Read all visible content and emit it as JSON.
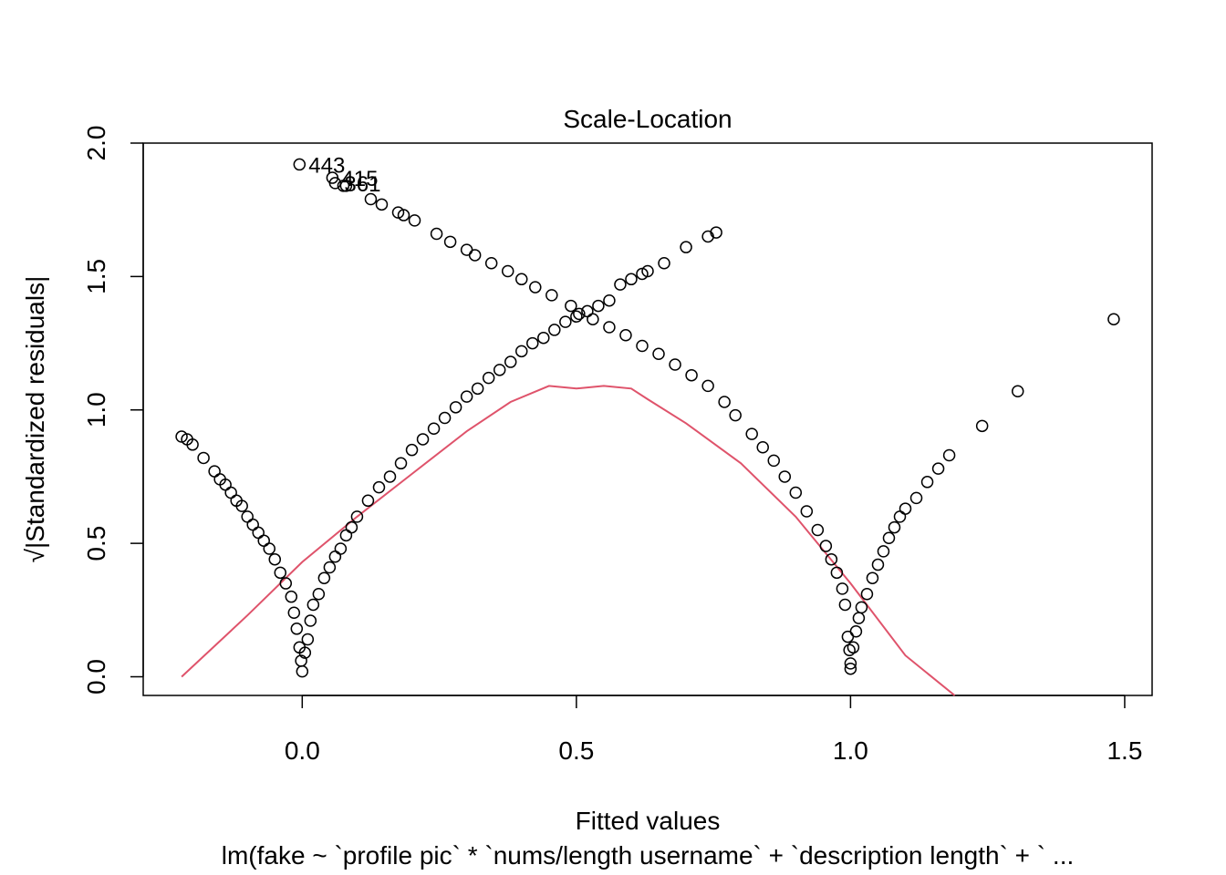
{
  "chart_data": {
    "type": "scatter",
    "title": "Scale-Location",
    "xlabel": "Fitted values",
    "ylabel": "√|Standardized residuals|",
    "subtitle": "lm(fake ~ `profile pic` * `nums/length username` + `description length` + ` ...",
    "xlim": [
      -0.29,
      1.55
    ],
    "ylim": [
      -0.07,
      2.0
    ],
    "x_ticks": [
      0.0,
      0.5,
      1.0,
      1.5
    ],
    "x_tick_labels": [
      "0.0",
      "0.5",
      "1.0",
      "1.5"
    ],
    "y_ticks": [
      0.0,
      0.5,
      1.0,
      1.5,
      2.0
    ],
    "y_tick_labels": [
      "0.0",
      "0.5",
      "1.0",
      "1.5",
      "2.0"
    ],
    "grid": false,
    "series": [
      {
        "type": "points",
        "color": "#000000",
        "points": [
          [
            -0.22,
            0.9
          ],
          [
            -0.21,
            0.89
          ],
          [
            -0.2,
            0.87
          ],
          [
            -0.18,
            0.82
          ],
          [
            -0.16,
            0.77
          ],
          [
            -0.15,
            0.74
          ],
          [
            -0.14,
            0.72
          ],
          [
            -0.13,
            0.69
          ],
          [
            -0.12,
            0.66
          ],
          [
            -0.11,
            0.64
          ],
          [
            -0.1,
            0.6
          ],
          [
            -0.09,
            0.57
          ],
          [
            -0.08,
            0.54
          ],
          [
            -0.07,
            0.51
          ],
          [
            -0.06,
            0.48
          ],
          [
            -0.05,
            0.44
          ],
          [
            -0.04,
            0.39
          ],
          [
            -0.03,
            0.35
          ],
          [
            -0.02,
            0.3
          ],
          [
            -0.015,
            0.24
          ],
          [
            -0.01,
            0.18
          ],
          [
            -0.005,
            0.11
          ],
          [
            -0.002,
            0.06
          ],
          [
            0.0,
            0.02
          ],
          [
            0.005,
            0.09
          ],
          [
            0.01,
            0.14
          ],
          [
            0.015,
            0.21
          ],
          [
            0.02,
            0.27
          ],
          [
            0.03,
            0.31
          ],
          [
            0.04,
            0.37
          ],
          [
            0.05,
            0.41
          ],
          [
            0.06,
            0.45
          ],
          [
            0.07,
            0.48
          ],
          [
            0.08,
            0.53
          ],
          [
            0.09,
            0.56
          ],
          [
            0.1,
            0.6
          ],
          [
            0.12,
            0.66
          ],
          [
            0.14,
            0.71
          ],
          [
            0.16,
            0.75
          ],
          [
            0.18,
            0.8
          ],
          [
            0.2,
            0.85
          ],
          [
            0.22,
            0.89
          ],
          [
            0.24,
            0.93
          ],
          [
            0.26,
            0.97
          ],
          [
            0.28,
            1.01
          ],
          [
            0.3,
            1.05
          ],
          [
            0.32,
            1.08
          ],
          [
            0.34,
            1.12
          ],
          [
            0.36,
            1.15
          ],
          [
            0.38,
            1.18
          ],
          [
            0.4,
            1.22
          ],
          [
            0.42,
            1.25
          ],
          [
            0.44,
            1.27
          ],
          [
            0.46,
            1.3
          ],
          [
            0.48,
            1.33
          ],
          [
            0.5,
            1.35
          ],
          [
            0.52,
            1.37
          ],
          [
            0.54,
            1.39
          ],
          [
            0.56,
            1.41
          ],
          [
            0.58,
            1.47
          ],
          [
            0.6,
            1.49
          ],
          [
            0.62,
            1.51
          ],
          [
            0.63,
            1.52
          ],
          [
            0.66,
            1.55
          ],
          [
            0.7,
            1.61
          ],
          [
            0.74,
            1.65
          ],
          [
            0.755,
            1.665
          ],
          [
            -0.005,
            1.92
          ],
          [
            0.055,
            1.87
          ],
          [
            0.06,
            1.85
          ],
          [
            0.075,
            1.84
          ],
          [
            0.08,
            1.84
          ],
          [
            0.125,
            1.79
          ],
          [
            0.145,
            1.77
          ],
          [
            0.175,
            1.74
          ],
          [
            0.185,
            1.73
          ],
          [
            0.205,
            1.71
          ],
          [
            0.245,
            1.66
          ],
          [
            0.27,
            1.63
          ],
          [
            0.3,
            1.6
          ],
          [
            0.315,
            1.58
          ],
          [
            0.345,
            1.55
          ],
          [
            0.375,
            1.52
          ],
          [
            0.4,
            1.49
          ],
          [
            0.425,
            1.46
          ],
          [
            0.455,
            1.43
          ],
          [
            0.49,
            1.39
          ],
          [
            0.505,
            1.36
          ],
          [
            0.53,
            1.34
          ],
          [
            0.56,
            1.31
          ],
          [
            0.59,
            1.28
          ],
          [
            0.62,
            1.24
          ],
          [
            0.65,
            1.21
          ],
          [
            0.68,
            1.17
          ],
          [
            0.71,
            1.13
          ],
          [
            0.74,
            1.09
          ],
          [
            0.77,
            1.03
          ],
          [
            0.79,
            0.98
          ],
          [
            0.82,
            0.91
          ],
          [
            0.84,
            0.86
          ],
          [
            0.86,
            0.81
          ],
          [
            0.88,
            0.75
          ],
          [
            0.9,
            0.69
          ],
          [
            0.92,
            0.62
          ],
          [
            0.94,
            0.55
          ],
          [
            0.955,
            0.49
          ],
          [
            0.965,
            0.44
          ],
          [
            0.975,
            0.39
          ],
          [
            0.985,
            0.33
          ],
          [
            0.99,
            0.27
          ],
          [
            0.995,
            0.15
          ],
          [
            0.998,
            0.1
          ],
          [
            1.0,
            0.05
          ],
          [
            1.0,
            0.03
          ],
          [
            1.005,
            0.11
          ],
          [
            1.01,
            0.17
          ],
          [
            1.015,
            0.22
          ],
          [
            1.02,
            0.26
          ],
          [
            1.03,
            0.31
          ],
          [
            1.04,
            0.37
          ],
          [
            1.05,
            0.42
          ],
          [
            1.06,
            0.47
          ],
          [
            1.07,
            0.52
          ],
          [
            1.08,
            0.56
          ],
          [
            1.09,
            0.6
          ],
          [
            1.1,
            0.63
          ],
          [
            1.12,
            0.67
          ],
          [
            1.14,
            0.73
          ],
          [
            1.16,
            0.78
          ],
          [
            1.18,
            0.83
          ],
          [
            1.24,
            0.94
          ],
          [
            1.305,
            1.07
          ],
          [
            1.48,
            1.34
          ]
        ]
      },
      {
        "type": "line",
        "name": "smoother",
        "color": "#DF536B",
        "points": [
          [
            -0.22,
            0.0
          ],
          [
            -0.1,
            0.23
          ],
          [
            0.0,
            0.43
          ],
          [
            0.1,
            0.6
          ],
          [
            0.2,
            0.76
          ],
          [
            0.3,
            0.92
          ],
          [
            0.38,
            1.03
          ],
          [
            0.45,
            1.09
          ],
          [
            0.5,
            1.08
          ],
          [
            0.55,
            1.09
          ],
          [
            0.6,
            1.08
          ],
          [
            0.63,
            1.04
          ],
          [
            0.7,
            0.95
          ],
          [
            0.8,
            0.8
          ],
          [
            0.9,
            0.6
          ],
          [
            1.0,
            0.35
          ],
          [
            1.1,
            0.08
          ],
          [
            1.19,
            -0.07
          ]
        ]
      }
    ],
    "annotations": [
      {
        "label": "443",
        "x": -0.005,
        "y": 1.92
      },
      {
        "label": "415",
        "x": 0.055,
        "y": 1.87
      },
      {
        "label": "361",
        "x": 0.06,
        "y": 1.85
      }
    ]
  }
}
